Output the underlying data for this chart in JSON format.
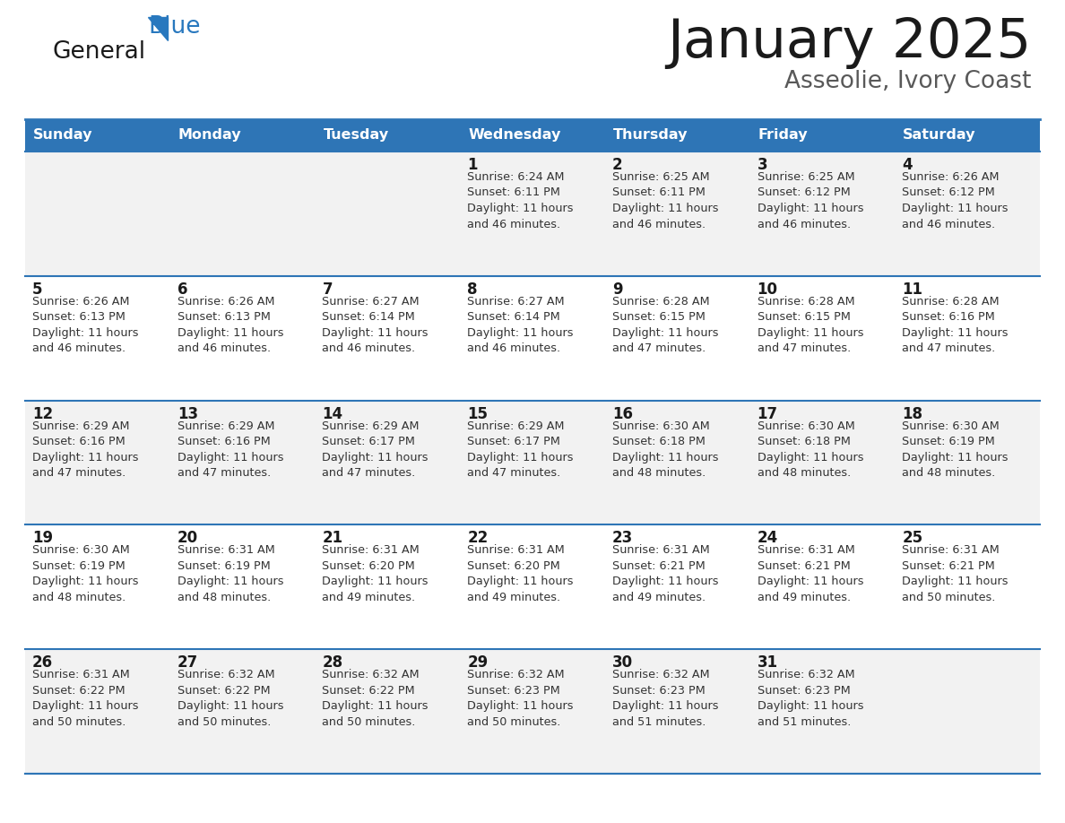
{
  "title": "January 2025",
  "subtitle": "Asseolie, Ivory Coast",
  "header_color": "#2E75B6",
  "header_text_color": "#FFFFFF",
  "row_bg_odd": "#F2F2F2",
  "row_bg_even": "#FFFFFF",
  "separator_color": "#2E75B6",
  "day_headers": [
    "Sunday",
    "Monday",
    "Tuesday",
    "Wednesday",
    "Thursday",
    "Friday",
    "Saturday"
  ],
  "logo_general_color": "#1a1a1a",
  "logo_blue_color": "#2878BE",
  "weeks": [
    {
      "days": [
        {
          "day": null,
          "text": null
        },
        {
          "day": null,
          "text": null
        },
        {
          "day": null,
          "text": null
        },
        {
          "day": 1,
          "text": "Sunrise: 6:24 AM\nSunset: 6:11 PM\nDaylight: 11 hours\nand 46 minutes."
        },
        {
          "day": 2,
          "text": "Sunrise: 6:25 AM\nSunset: 6:11 PM\nDaylight: 11 hours\nand 46 minutes."
        },
        {
          "day": 3,
          "text": "Sunrise: 6:25 AM\nSunset: 6:12 PM\nDaylight: 11 hours\nand 46 minutes."
        },
        {
          "day": 4,
          "text": "Sunrise: 6:26 AM\nSunset: 6:12 PM\nDaylight: 11 hours\nand 46 minutes."
        }
      ]
    },
    {
      "days": [
        {
          "day": 5,
          "text": "Sunrise: 6:26 AM\nSunset: 6:13 PM\nDaylight: 11 hours\nand 46 minutes."
        },
        {
          "day": 6,
          "text": "Sunrise: 6:26 AM\nSunset: 6:13 PM\nDaylight: 11 hours\nand 46 minutes."
        },
        {
          "day": 7,
          "text": "Sunrise: 6:27 AM\nSunset: 6:14 PM\nDaylight: 11 hours\nand 46 minutes."
        },
        {
          "day": 8,
          "text": "Sunrise: 6:27 AM\nSunset: 6:14 PM\nDaylight: 11 hours\nand 46 minutes."
        },
        {
          "day": 9,
          "text": "Sunrise: 6:28 AM\nSunset: 6:15 PM\nDaylight: 11 hours\nand 47 minutes."
        },
        {
          "day": 10,
          "text": "Sunrise: 6:28 AM\nSunset: 6:15 PM\nDaylight: 11 hours\nand 47 minutes."
        },
        {
          "day": 11,
          "text": "Sunrise: 6:28 AM\nSunset: 6:16 PM\nDaylight: 11 hours\nand 47 minutes."
        }
      ]
    },
    {
      "days": [
        {
          "day": 12,
          "text": "Sunrise: 6:29 AM\nSunset: 6:16 PM\nDaylight: 11 hours\nand 47 minutes."
        },
        {
          "day": 13,
          "text": "Sunrise: 6:29 AM\nSunset: 6:16 PM\nDaylight: 11 hours\nand 47 minutes."
        },
        {
          "day": 14,
          "text": "Sunrise: 6:29 AM\nSunset: 6:17 PM\nDaylight: 11 hours\nand 47 minutes."
        },
        {
          "day": 15,
          "text": "Sunrise: 6:29 AM\nSunset: 6:17 PM\nDaylight: 11 hours\nand 47 minutes."
        },
        {
          "day": 16,
          "text": "Sunrise: 6:30 AM\nSunset: 6:18 PM\nDaylight: 11 hours\nand 48 minutes."
        },
        {
          "day": 17,
          "text": "Sunrise: 6:30 AM\nSunset: 6:18 PM\nDaylight: 11 hours\nand 48 minutes."
        },
        {
          "day": 18,
          "text": "Sunrise: 6:30 AM\nSunset: 6:19 PM\nDaylight: 11 hours\nand 48 minutes."
        }
      ]
    },
    {
      "days": [
        {
          "day": 19,
          "text": "Sunrise: 6:30 AM\nSunset: 6:19 PM\nDaylight: 11 hours\nand 48 minutes."
        },
        {
          "day": 20,
          "text": "Sunrise: 6:31 AM\nSunset: 6:19 PM\nDaylight: 11 hours\nand 48 minutes."
        },
        {
          "day": 21,
          "text": "Sunrise: 6:31 AM\nSunset: 6:20 PM\nDaylight: 11 hours\nand 49 minutes."
        },
        {
          "day": 22,
          "text": "Sunrise: 6:31 AM\nSunset: 6:20 PM\nDaylight: 11 hours\nand 49 minutes."
        },
        {
          "day": 23,
          "text": "Sunrise: 6:31 AM\nSunset: 6:21 PM\nDaylight: 11 hours\nand 49 minutes."
        },
        {
          "day": 24,
          "text": "Sunrise: 6:31 AM\nSunset: 6:21 PM\nDaylight: 11 hours\nand 49 minutes."
        },
        {
          "day": 25,
          "text": "Sunrise: 6:31 AM\nSunset: 6:21 PM\nDaylight: 11 hours\nand 50 minutes."
        }
      ]
    },
    {
      "days": [
        {
          "day": 26,
          "text": "Sunrise: 6:31 AM\nSunset: 6:22 PM\nDaylight: 11 hours\nand 50 minutes."
        },
        {
          "day": 27,
          "text": "Sunrise: 6:32 AM\nSunset: 6:22 PM\nDaylight: 11 hours\nand 50 minutes."
        },
        {
          "day": 28,
          "text": "Sunrise: 6:32 AM\nSunset: 6:22 PM\nDaylight: 11 hours\nand 50 minutes."
        },
        {
          "day": 29,
          "text": "Sunrise: 6:32 AM\nSunset: 6:23 PM\nDaylight: 11 hours\nand 50 minutes."
        },
        {
          "day": 30,
          "text": "Sunrise: 6:32 AM\nSunset: 6:23 PM\nDaylight: 11 hours\nand 51 minutes."
        },
        {
          "day": 31,
          "text": "Sunrise: 6:32 AM\nSunset: 6:23 PM\nDaylight: 11 hours\nand 51 minutes."
        },
        {
          "day": null,
          "text": null
        }
      ]
    }
  ]
}
